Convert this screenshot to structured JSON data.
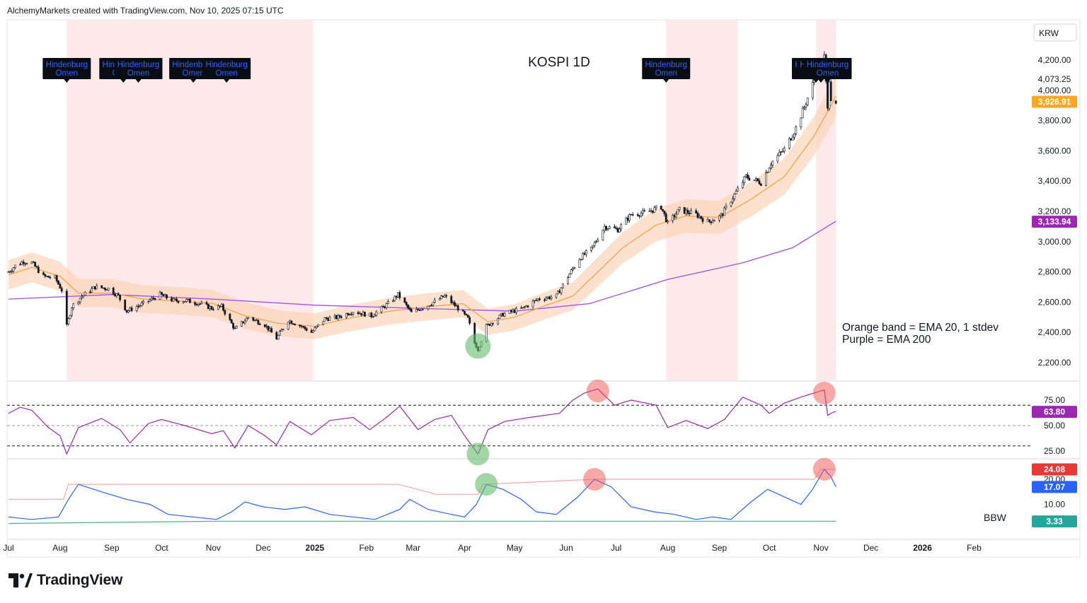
{
  "header": {
    "credit": "AlchemyMarkets created with TradingView.com, Nov 10, 2025 07:15 UTC"
  },
  "currency": "KRW",
  "brand": {
    "name": "TradingView"
  },
  "colors": {
    "ema20": "#f7a14a",
    "band": "#fbd3b4",
    "ema200": "#9c4dea",
    "rsi": "#9c27b0",
    "bbw": "#2962ff",
    "bbw_high": "#f8a8a8",
    "bbw_low": "#4caf8a",
    "shade": "#fde9ea",
    "tag_price": "#f9a825",
    "tag_ema200": "#9c27b0",
    "tag_bbw_high": "#e53935",
    "tag_bbw": "#2962ff",
    "tag_bbw_low": "#26a69a"
  },
  "chart_data": [
    {
      "type": "candlestick",
      "title": "KOSPI 1D",
      "x_range": [
        "2024-07-01",
        "2026-02-28"
      ],
      "y_scale": "linear",
      "ylim": [
        2150,
        4300
      ],
      "y_ticks": [
        {
          "value": 4200,
          "label": "4,200.00"
        },
        {
          "value": 4000,
          "label": "4,000.00"
        },
        {
          "value": 3800,
          "label": "3,800.00"
        },
        {
          "value": 3600,
          "label": "3,600.00"
        },
        {
          "value": 3400,
          "label": "3,400.00"
        },
        {
          "value": 3200,
          "label": "3,200.00"
        },
        {
          "value": 3000,
          "label": "3,000.00"
        },
        {
          "value": 2800,
          "label": "2,800.00"
        },
        {
          "value": 2600,
          "label": "2,600.00"
        },
        {
          "value": 2400,
          "label": "2,400.00"
        },
        {
          "value": 2200,
          "label": "2,200.00"
        }
      ],
      "extra_label": {
        "value": 4073.25,
        "label": "4,073.25"
      },
      "last_price": {
        "value": 3926.91,
        "label": "3,926.91"
      },
      "ema200_last": {
        "value": 3133.94,
        "label": "3,133.94"
      },
      "close_series": [
        [
          "2024-07-01",
          2800
        ],
        [
          "2024-07-05",
          2840
        ],
        [
          "2024-07-10",
          2870
        ],
        [
          "2024-07-15",
          2860
        ],
        [
          "2024-07-22",
          2770
        ],
        [
          "2024-07-29",
          2760
        ],
        [
          "2024-08-02",
          2680
        ],
        [
          "2024-08-05",
          2440
        ],
        [
          "2024-08-08",
          2570
        ],
        [
          "2024-08-14",
          2640
        ],
        [
          "2024-08-22",
          2700
        ],
        [
          "2024-08-30",
          2690
        ],
        [
          "2024-09-05",
          2640
        ],
        [
          "2024-09-10",
          2540
        ],
        [
          "2024-09-20",
          2590
        ],
        [
          "2024-09-30",
          2650
        ],
        [
          "2024-10-08",
          2610
        ],
        [
          "2024-10-16",
          2610
        ],
        [
          "2024-10-24",
          2590
        ],
        [
          "2024-10-31",
          2560
        ],
        [
          "2024-11-06",
          2570
        ],
        [
          "2024-11-14",
          2420
        ],
        [
          "2024-11-22",
          2500
        ],
        [
          "2024-12-02",
          2450
        ],
        [
          "2024-12-09",
          2360
        ],
        [
          "2024-12-16",
          2480
        ],
        [
          "2024-12-24",
          2440
        ],
        [
          "2024-12-30",
          2400
        ],
        [
          "2025-01-07",
          2490
        ],
        [
          "2025-01-15",
          2500
        ],
        [
          "2025-01-24",
          2540
        ],
        [
          "2025-02-04",
          2510
        ],
        [
          "2025-02-14",
          2590
        ],
        [
          "2025-02-20",
          2650
        ],
        [
          "2025-02-28",
          2530
        ],
        [
          "2025-03-10",
          2580
        ],
        [
          "2025-03-20",
          2640
        ],
        [
          "2025-03-28",
          2560
        ],
        [
          "2025-04-03",
          2490
        ],
        [
          "2025-04-07",
          2330
        ],
        [
          "2025-04-09",
          2290
        ],
        [
          "2025-04-14",
          2440
        ],
        [
          "2025-04-24",
          2520
        ],
        [
          "2025-05-06",
          2560
        ],
        [
          "2025-05-15",
          2620
        ],
        [
          "2025-05-26",
          2640
        ],
        [
          "2025-06-02",
          2770
        ],
        [
          "2025-06-09",
          2890
        ],
        [
          "2025-06-16",
          2950
        ],
        [
          "2025-06-24",
          3100
        ],
        [
          "2025-07-02",
          3080
        ],
        [
          "2025-07-10",
          3180
        ],
        [
          "2025-07-18",
          3190
        ],
        [
          "2025-07-28",
          3230
        ],
        [
          "2025-08-01",
          3120
        ],
        [
          "2025-08-08",
          3210
        ],
        [
          "2025-08-18",
          3180
        ],
        [
          "2025-08-25",
          3130
        ],
        [
          "2025-09-02",
          3170
        ],
        [
          "2025-09-10",
          3310
        ],
        [
          "2025-09-17",
          3430
        ],
        [
          "2025-09-26",
          3390
        ],
        [
          "2025-10-02",
          3520
        ],
        [
          "2025-10-10",
          3610
        ],
        [
          "2025-10-17",
          3750
        ],
        [
          "2025-10-22",
          3890
        ],
        [
          "2025-10-27",
          4040
        ],
        [
          "2025-10-30",
          4150
        ],
        [
          "2025-11-03",
          4221
        ],
        [
          "2025-11-05",
          3870
        ],
        [
          "2025-11-06",
          4080
        ],
        [
          "2025-11-07",
          3953
        ],
        [
          "2025-11-10",
          3927
        ]
      ],
      "ema20": [
        [
          "2024-07-01",
          2780
        ],
        [
          "2024-07-15",
          2830
        ],
        [
          "2024-08-01",
          2770
        ],
        [
          "2024-08-12",
          2660
        ],
        [
          "2024-09-01",
          2660
        ],
        [
          "2024-09-20",
          2620
        ],
        [
          "2024-10-10",
          2610
        ],
        [
          "2024-11-01",
          2590
        ],
        [
          "2024-11-20",
          2510
        ],
        [
          "2024-12-10",
          2460
        ],
        [
          "2025-01-01",
          2440
        ],
        [
          "2025-01-20",
          2490
        ],
        [
          "2025-02-15",
          2540
        ],
        [
          "2025-03-10",
          2570
        ],
        [
          "2025-03-31",
          2590
        ],
        [
          "2025-04-15",
          2470
        ],
        [
          "2025-05-01",
          2500
        ],
        [
          "2025-05-20",
          2580
        ],
        [
          "2025-06-05",
          2640
        ],
        [
          "2025-06-20",
          2800
        ],
        [
          "2025-07-05",
          2960
        ],
        [
          "2025-07-25",
          3110
        ],
        [
          "2025-08-12",
          3170
        ],
        [
          "2025-09-01",
          3160
        ],
        [
          "2025-09-20",
          3280
        ],
        [
          "2025-10-10",
          3430
        ],
        [
          "2025-10-28",
          3700
        ],
        [
          "2025-11-10",
          3960
        ]
      ],
      "ema200": [
        [
          "2024-07-01",
          2620
        ],
        [
          "2024-09-01",
          2650
        ],
        [
          "2024-11-01",
          2620
        ],
        [
          "2025-01-01",
          2580
        ],
        [
          "2025-03-01",
          2560
        ],
        [
          "2025-05-01",
          2540
        ],
        [
          "2025-06-15",
          2590
        ],
        [
          "2025-08-01",
          2750
        ],
        [
          "2025-09-15",
          2860
        ],
        [
          "2025-10-15",
          2960
        ],
        [
          "2025-11-10",
          3134
        ]
      ],
      "shaded_ranges": [
        [
          "2024-08-05",
          "2024-12-31"
        ],
        [
          "2025-07-31",
          "2025-09-12"
        ],
        [
          "2025-10-29",
          "2025-11-10"
        ]
      ],
      "annotations": [
        {
          "date": "2024-08-05",
          "text": "Hindenburg Omen"
        },
        {
          "date": "2024-09-08",
          "text": "Hindenburg Omen"
        },
        {
          "date": "2024-09-17",
          "text": "Hindenburg Omen"
        },
        {
          "date": "2024-10-20",
          "text": "Hindenburg Omen"
        },
        {
          "date": "2024-11-09",
          "text": "Hindenburg Omen"
        },
        {
          "date": "2025-07-31",
          "text": "Hindenburg Omen"
        },
        {
          "date": "2025-10-29",
          "text": "Hindenburg Omen"
        },
        {
          "date": "2025-11-01",
          "text": "Hindenburg Omen"
        },
        {
          "date": "2025-11-05",
          "text": "Hindenburg Omen"
        }
      ],
      "legend_note": [
        "Orange band = EMA 20, 1 stdev",
        "Purple = EMA 200"
      ]
    },
    {
      "type": "line",
      "name": "RSI",
      "ylim": [
        10,
        92
      ],
      "y_ticks": [
        {
          "value": 75,
          "label": "75.00"
        },
        {
          "value": 50,
          "label": "50.00"
        },
        {
          "value": 25,
          "label": "25.00"
        }
      ],
      "levels": [
        70,
        50,
        30
      ],
      "last": {
        "value": 63.8,
        "label": "63.80"
      },
      "series": [
        [
          "2024-07-01",
          62
        ],
        [
          "2024-07-08",
          68
        ],
        [
          "2024-07-15",
          65
        ],
        [
          "2024-07-25",
          48
        ],
        [
          "2024-08-01",
          40
        ],
        [
          "2024-08-05",
          22
        ],
        [
          "2024-08-12",
          48
        ],
        [
          "2024-08-26",
          57
        ],
        [
          "2024-09-06",
          46
        ],
        [
          "2024-09-12",
          33
        ],
        [
          "2024-09-23",
          52
        ],
        [
          "2024-10-01",
          56
        ],
        [
          "2024-10-15",
          50
        ],
        [
          "2024-10-31",
          42
        ],
        [
          "2024-11-07",
          45
        ],
        [
          "2024-11-14",
          28
        ],
        [
          "2024-11-22",
          50
        ],
        [
          "2024-12-02",
          40
        ],
        [
          "2024-12-09",
          31
        ],
        [
          "2024-12-17",
          54
        ],
        [
          "2024-12-30",
          41
        ],
        [
          "2025-01-10",
          55
        ],
        [
          "2025-01-24",
          58
        ],
        [
          "2025-02-03",
          46
        ],
        [
          "2025-02-13",
          58
        ],
        [
          "2025-02-21",
          69
        ],
        [
          "2025-03-04",
          46
        ],
        [
          "2025-03-14",
          56
        ],
        [
          "2025-03-24",
          60
        ],
        [
          "2025-04-01",
          40
        ],
        [
          "2025-04-09",
          22
        ],
        [
          "2025-04-15",
          46
        ],
        [
          "2025-04-25",
          54
        ],
        [
          "2025-05-10",
          58
        ],
        [
          "2025-05-28",
          62
        ],
        [
          "2025-06-05",
          75
        ],
        [
          "2025-06-12",
          82
        ],
        [
          "2025-06-20",
          86
        ],
        [
          "2025-06-30",
          70
        ],
        [
          "2025-07-10",
          75
        ],
        [
          "2025-07-25",
          70
        ],
        [
          "2025-08-01",
          48
        ],
        [
          "2025-08-12",
          55
        ],
        [
          "2025-08-25",
          47
        ],
        [
          "2025-09-04",
          56
        ],
        [
          "2025-09-15",
          78
        ],
        [
          "2025-09-26",
          70
        ],
        [
          "2025-10-01",
          62
        ],
        [
          "2025-10-10",
          72
        ],
        [
          "2025-10-20",
          78
        ],
        [
          "2025-10-28",
          82
        ],
        [
          "2025-11-03",
          85
        ],
        [
          "2025-11-05",
          60
        ],
        [
          "2025-11-07",
          62
        ],
        [
          "2025-11-10",
          64
        ]
      ]
    },
    {
      "type": "line",
      "name": "BBW",
      "ylim": [
        0,
        28
      ],
      "y_ticks": [
        {
          "value": 20,
          "label": "20.00"
        },
        {
          "value": 10,
          "label": "10.00"
        }
      ],
      "labels": {
        "high": {
          "value": 24.08,
          "label": "24.08"
        },
        "bbw": {
          "value": 17.07,
          "label": "17.07"
        },
        "low": {
          "value": 3.33,
          "label": "3.33"
        }
      },
      "series_label": "BBW",
      "series": [
        [
          "2024-07-01",
          5
        ],
        [
          "2024-07-15",
          4
        ],
        [
          "2024-07-31",
          5
        ],
        [
          "2024-08-06",
          12
        ],
        [
          "2024-08-12",
          18
        ],
        [
          "2024-08-26",
          15
        ],
        [
          "2024-09-10",
          12
        ],
        [
          "2024-09-24",
          10
        ],
        [
          "2024-10-05",
          6
        ],
        [
          "2024-10-20",
          5
        ],
        [
          "2024-11-03",
          4
        ],
        [
          "2024-11-12",
          7
        ],
        [
          "2024-11-20",
          11
        ],
        [
          "2024-12-01",
          9
        ],
        [
          "2024-12-14",
          8
        ],
        [
          "2024-12-26",
          9
        ],
        [
          "2025-01-10",
          6
        ],
        [
          "2025-01-24",
          5
        ],
        [
          "2025-02-06",
          4
        ],
        [
          "2025-02-21",
          8
        ],
        [
          "2025-02-27",
          12
        ],
        [
          "2025-03-10",
          8
        ],
        [
          "2025-03-24",
          6
        ],
        [
          "2025-04-01",
          5
        ],
        [
          "2025-04-08",
          10
        ],
        [
          "2025-04-14",
          18
        ],
        [
          "2025-04-24",
          16
        ],
        [
          "2025-05-05",
          12
        ],
        [
          "2025-05-14",
          7
        ],
        [
          "2025-05-26",
          6
        ],
        [
          "2025-06-08",
          13
        ],
        [
          "2025-06-18",
          20
        ],
        [
          "2025-06-28",
          17
        ],
        [
          "2025-07-10",
          9
        ],
        [
          "2025-07-24",
          7
        ],
        [
          "2025-08-05",
          6
        ],
        [
          "2025-08-18",
          4
        ],
        [
          "2025-08-28",
          5
        ],
        [
          "2025-09-08",
          4
        ],
        [
          "2025-09-20",
          11
        ],
        [
          "2025-09-30",
          16
        ],
        [
          "2025-10-10",
          13
        ],
        [
          "2025-10-20",
          10
        ],
        [
          "2025-10-27",
          16
        ],
        [
          "2025-11-03",
          24
        ],
        [
          "2025-11-07",
          21
        ],
        [
          "2025-11-10",
          17
        ]
      ],
      "high_series": [
        [
          "2024-07-01",
          12
        ],
        [
          "2024-08-03",
          12
        ],
        [
          "2024-08-06",
          18
        ],
        [
          "2025-02-20",
          18
        ],
        [
          "2025-03-15",
          14
        ],
        [
          "2025-04-09",
          14
        ],
        [
          "2025-04-12",
          18
        ],
        [
          "2025-06-18",
          20
        ],
        [
          "2025-10-28",
          20
        ],
        [
          "2025-11-01",
          24
        ],
        [
          "2025-11-10",
          24
        ]
      ],
      "low_series": [
        [
          "2024-07-01",
          2.4
        ],
        [
          "2024-11-05",
          3.3
        ],
        [
          "2025-04-30",
          3.3
        ],
        [
          "2025-11-10",
          3.3
        ]
      ]
    }
  ],
  "x_labels": [
    {
      "date": "2024-07-01",
      "label": "Jul"
    },
    {
      "date": "2024-08-01",
      "label": "Aug"
    },
    {
      "date": "2024-09-01",
      "label": "Sep"
    },
    {
      "date": "2024-10-01",
      "label": "Oct"
    },
    {
      "date": "2024-11-01",
      "label": "Nov"
    },
    {
      "date": "2024-12-01",
      "label": "Dec"
    },
    {
      "date": "2025-01-01",
      "label": "2025"
    },
    {
      "date": "2025-02-01",
      "label": "Feb"
    },
    {
      "date": "2025-03-01",
      "label": "Mar"
    },
    {
      "date": "2025-04-01",
      "label": "Apr"
    },
    {
      "date": "2025-05-01",
      "label": "May"
    },
    {
      "date": "2025-06-01",
      "label": "Jun"
    },
    {
      "date": "2025-07-01",
      "label": "Jul"
    },
    {
      "date": "2025-08-01",
      "label": "Aug"
    },
    {
      "date": "2025-09-01",
      "label": "Sep"
    },
    {
      "date": "2025-10-01",
      "label": "Oct"
    },
    {
      "date": "2025-11-01",
      "label": "Nov"
    },
    {
      "date": "2025-12-01",
      "label": "Dec"
    },
    {
      "date": "2026-01-01",
      "label": "2026"
    },
    {
      "date": "2026-02-01",
      "label": "Feb"
    }
  ],
  "markers": [
    {
      "pane": 0,
      "date": "2025-04-09",
      "value": 2310,
      "color": "green"
    },
    {
      "pane": 1,
      "date": "2025-06-20",
      "value": 84,
      "color": "red"
    },
    {
      "pane": 1,
      "date": "2025-11-03",
      "value": 82,
      "color": "red"
    },
    {
      "pane": 1,
      "date": "2025-04-09",
      "value": 22,
      "color": "green"
    },
    {
      "pane": 2,
      "date": "2025-04-14",
      "value": 18,
      "color": "green"
    },
    {
      "pane": 2,
      "date": "2025-06-18",
      "value": 20,
      "color": "red"
    },
    {
      "pane": 2,
      "date": "2025-11-03",
      "value": 24,
      "color": "red"
    }
  ]
}
